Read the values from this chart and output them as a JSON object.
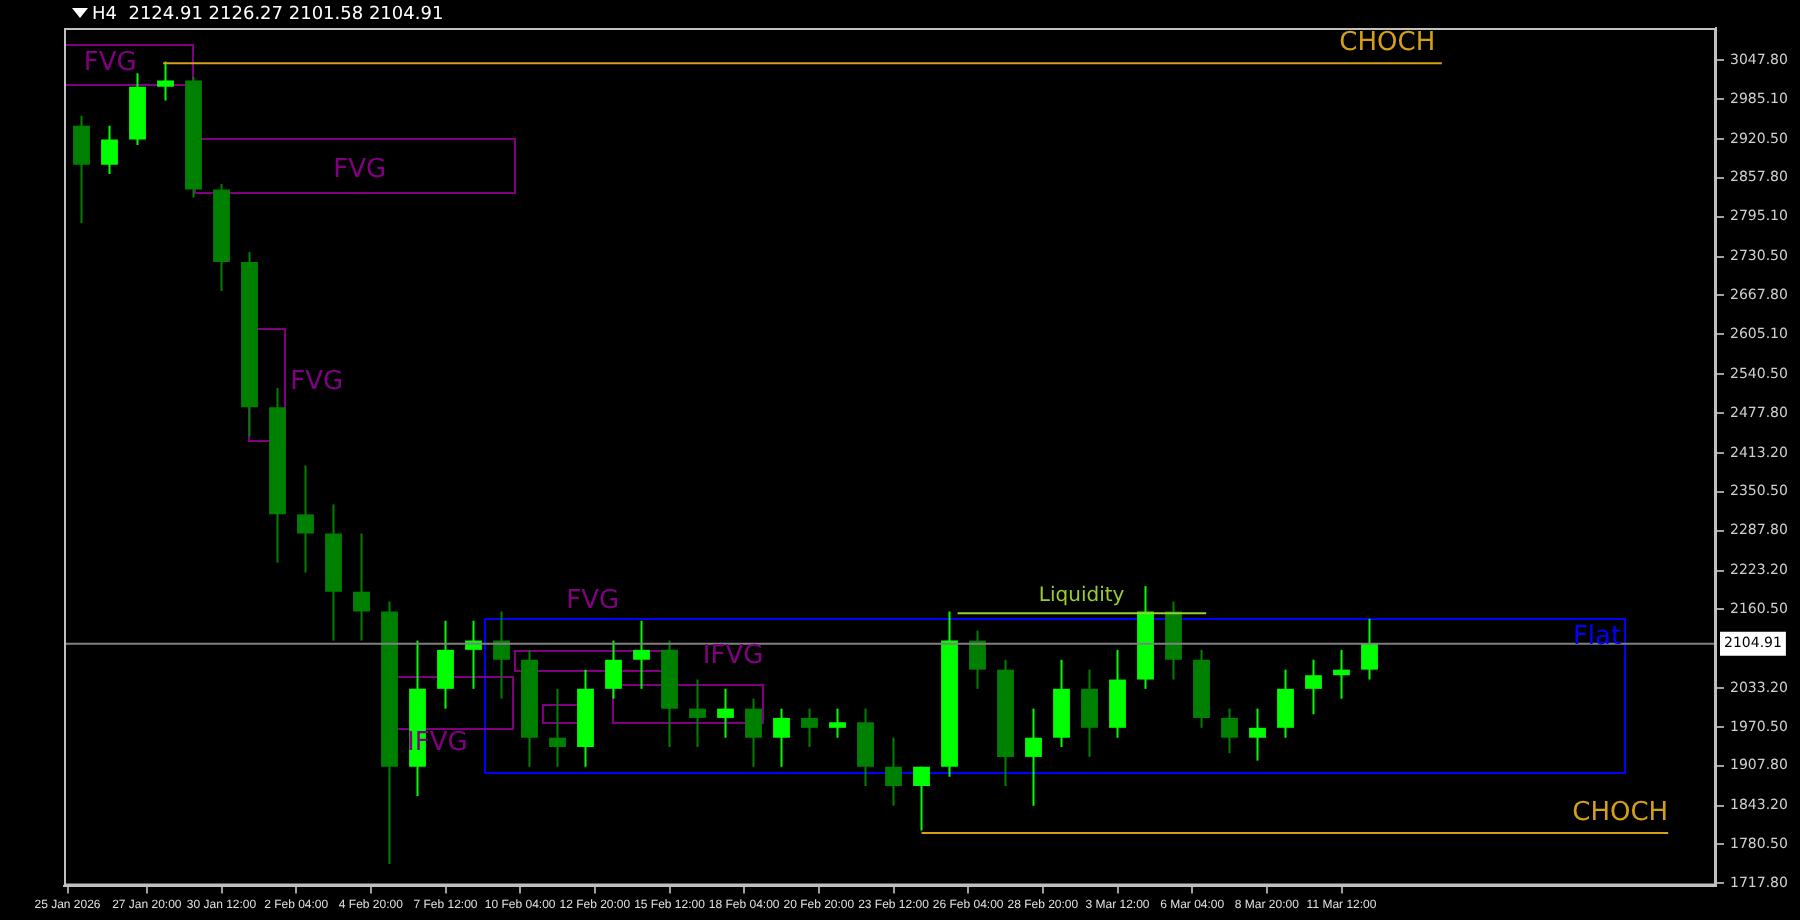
{
  "chart_data": {
    "type": "candlestick",
    "title": "H4  2124.91 2126.27 2101.58 2104.91",
    "xlim": [
      "2026-01-24T21:00",
      "2026-03-24T21:00"
    ],
    "xticks": [
      {
        "value": "2026-01-25",
        "label": "25 Jan 2026"
      },
      {
        "value": "2026-01-27T20:00",
        "label": "27 Jan 20:00"
      },
      {
        "value": "2026-01-30T12:00",
        "label": "30 Jan 12:00"
      },
      {
        "value": "2026-02-02T04:00",
        "label": "2 Feb 04:00"
      },
      {
        "value": "2026-02-04T20:00",
        "label": "4 Feb 20:00"
      },
      {
        "value": "2026-02-07T12:00",
        "label": "7 Feb 12:00"
      },
      {
        "value": "2026-02-10T04:00",
        "label": "10 Feb 04:00"
      },
      {
        "value": "2026-02-12T20:00",
        "label": "12 Feb 20:00"
      },
      {
        "value": "2026-02-15T12:00",
        "label": "15 Feb 12:00"
      },
      {
        "value": "2026-02-18T04:00",
        "label": "18 Feb 04:00"
      },
      {
        "value": "2026-02-20T20:00",
        "label": "20 Feb 20:00"
      },
      {
        "value": "2026-02-23T12:00",
        "label": "23 Feb 12:00"
      },
      {
        "value": "2026-02-26T04:00",
        "label": "26 Feb 04:00"
      },
      {
        "value": "2026-02-28T20:00",
        "label": "28 Feb 20:00"
      },
      {
        "value": "2026-03-03T12:00",
        "label": "3 Mar 12:00"
      },
      {
        "value": "2026-03-06T04:00",
        "label": "6 Mar 04:00"
      },
      {
        "value": "2026-03-08T20:00",
        "label": "8 Mar 20:00"
      },
      {
        "value": "2026-03-11T12:00",
        "label": "11 Mar 12:00"
      }
    ],
    "ylim": [
      1714,
      3100
    ],
    "yticks": [
      {
        "value": 1717.8,
        "label": "1717.80"
      },
      {
        "value": 1780.5,
        "label": "1780.50"
      },
      {
        "value": 1843.2,
        "label": "1843.20"
      },
      {
        "value": 1907.8,
        "label": "1907.80"
      },
      {
        "value": 1970.5,
        "label": "1970.50"
      },
      {
        "value": 2033.2,
        "label": "2033.20"
      },
      {
        "value": 2160.5,
        "label": "2160.50"
      },
      {
        "value": 2223.2,
        "label": "2223.20"
      },
      {
        "value": 2287.8,
        "label": "2287.80"
      },
      {
        "value": 2350.5,
        "label": "2350.50"
      },
      {
        "value": 2413.2,
        "label": "2413.20"
      },
      {
        "value": 2477.8,
        "label": "2477.80"
      },
      {
        "value": 2540.5,
        "label": "2540.50"
      },
      {
        "value": 2605.1,
        "label": "2605.10"
      },
      {
        "value": 2667.8,
        "label": "2667.80"
      },
      {
        "value": 2730.5,
        "label": "2730.50"
      },
      {
        "value": 2795.1,
        "label": "2795.10"
      },
      {
        "value": 2857.8,
        "label": "2857.80"
      },
      {
        "value": 2920.5,
        "label": "2920.50"
      },
      {
        "value": 2985.1,
        "label": "2985.10"
      },
      {
        "value": 3047.8,
        "label": "3047.80"
      }
    ],
    "ref_lines": [
      {
        "axis": "y",
        "value": 2104.91,
        "label": "2104.91",
        "color": "#808080"
      }
    ],
    "series": [
      {
        "color": "#00ff00",
        "colors": [
          "#008000",
          "#00ff00",
          "#00ff00",
          "#00ff00",
          "#008000",
          "#008000",
          "#008000",
          "#008000",
          "#008000",
          "#008000",
          "#008000",
          "#008000",
          "#00ff00",
          "#00ff00",
          "#00ff00",
          "#008000",
          "#008000",
          "#008000",
          "#00ff00",
          "#00ff00",
          "#00ff00",
          "#008000",
          "#008000",
          "#00ff00",
          "#008000",
          "#00ff00",
          "#008000",
          "#00ff00",
          "#008000",
          "#008000",
          "#00ff00",
          "#00ff00",
          "#008000",
          "#008000",
          "#00ff00",
          "#00ff00",
          "#008000",
          "#00ff00",
          "#00ff00",
          "#008000",
          "#008000",
          "#008000",
          "#00ff00",
          "#00ff00",
          "#00ff00",
          "#00ff00",
          "#00ff00"
        ],
        "x": [
          "2026-01-25T12:00",
          "2026-01-26T12:00",
          "2026-01-27T12:00",
          "2026-01-28T12:00",
          "2026-01-29T12:00",
          "2026-01-30T12:00",
          "2026-01-31T12:00",
          "2026-02-01T12:00",
          "2026-02-02T12:00",
          "2026-02-03T12:00",
          "2026-02-04T12:00",
          "2026-02-05T12:00",
          "2026-02-06T12:00",
          "2026-02-07T12:00",
          "2026-02-08T12:00",
          "2026-02-09T12:00",
          "2026-02-10T12:00",
          "2026-02-11T12:00",
          "2026-02-12T12:00",
          "2026-02-13T12:00",
          "2026-02-14T12:00",
          "2026-02-15T12:00",
          "2026-02-16T12:00",
          "2026-02-17T12:00",
          "2026-02-18T12:00",
          "2026-02-19T12:00",
          "2026-02-20T12:00",
          "2026-02-21T12:00",
          "2026-02-22T12:00",
          "2026-02-23T12:00",
          "2026-02-24T12:00",
          "2026-02-25T12:00",
          "2026-02-26T12:00",
          "2026-02-27T12:00",
          "2026-02-28T12:00",
          "2026-03-01T12:00",
          "2026-03-02T12:00",
          "2026-03-03T12:00",
          "2026-03-04T12:00",
          "2026-03-05T12:00",
          "2026-03-06T12:00",
          "2026-03-07T12:00",
          "2026-03-08T12:00",
          "2026-03-09T12:00",
          "2026-03-10T12:00",
          "2026-03-11T12:00",
          "2026-03-12T12:00"
        ],
        "ohlc": [
          [
            2942,
            2958,
            2785,
            2879
          ],
          [
            2879,
            2942,
            2864,
            2920
          ],
          [
            2920,
            3027,
            2911,
            3005
          ],
          [
            3005,
            3046,
            2983,
            3015
          ],
          [
            3015,
            3021,
            2826,
            2839
          ],
          [
            2839,
            2848,
            2675,
            2722
          ],
          [
            2722,
            2738,
            2440,
            2487
          ],
          [
            2487,
            2518,
            2236,
            2314
          ],
          [
            2314,
            2393,
            2220,
            2283
          ],
          [
            2283,
            2330,
            2110,
            2189
          ],
          [
            2189,
            2283,
            2110,
            2157
          ],
          [
            2157,
            2173,
            1749,
            1906
          ],
          [
            1906,
            2110,
            1859,
            2032
          ],
          [
            2032,
            2142,
            2000,
            2095
          ],
          [
            2095,
            2142,
            2032,
            2110
          ],
          [
            2110,
            2157,
            2016,
            2079
          ],
          [
            2079,
            2095,
            1906,
            1953
          ],
          [
            1953,
            2032,
            1906,
            1938
          ],
          [
            1938,
            2063,
            1906,
            2032
          ],
          [
            2032,
            2110,
            2016,
            2079
          ],
          [
            2079,
            2142,
            2032,
            2095
          ],
          [
            2095,
            2110,
            1938,
            2000
          ],
          [
            2000,
            2047,
            1938,
            1985
          ],
          [
            1985,
            2032,
            1953,
            2000
          ],
          [
            2000,
            2016,
            1906,
            1953
          ],
          [
            1953,
            2000,
            1906,
            1985
          ],
          [
            1985,
            2000,
            1938,
            1969
          ],
          [
            1969,
            2000,
            1953,
            1978
          ],
          [
            1978,
            2000,
            1875,
            1906
          ],
          [
            1906,
            1953,
            1843,
            1875
          ],
          [
            1875,
            1906,
            1803,
            1906
          ],
          [
            1906,
            2157,
            1890,
            2110
          ],
          [
            2110,
            2126,
            2032,
            2063
          ],
          [
            2063,
            2079,
            1875,
            1922
          ],
          [
            1922,
            2000,
            1843,
            1953
          ],
          [
            1953,
            2079,
            1938,
            2032
          ],
          [
            2032,
            2063,
            1922,
            1969
          ],
          [
            1969,
            2095,
            1953,
            2047
          ],
          [
            2047,
            2198,
            2032,
            2157
          ],
          [
            2157,
            2173,
            2047,
            2079
          ],
          [
            2079,
            2095,
            1969,
            1985
          ],
          [
            1985,
            2000,
            1928,
            1953
          ],
          [
            1953,
            2000,
            1916,
            1969
          ],
          [
            1969,
            2063,
            1953,
            2032
          ],
          [
            2032,
            2079,
            1991,
            2054
          ],
          [
            2054,
            2095,
            2016,
            2063
          ],
          [
            2063,
            2145,
            2047,
            2104.91
          ]
        ]
      },
      {
        "type": "line",
        "color": "#d4a017",
        "x": [
          "2026-01-28T10:00",
          "2026-03-15T02:00"
        ],
        "values": [
          3043,
          3043
        ]
      },
      {
        "type": "line",
        "color": "#9acd32",
        "x": [
          "2026-02-25T19:00",
          "2026-03-06T16:00"
        ],
        "values": [
          2154,
          2154
        ]
      },
      {
        "type": "line",
        "color": "#d4a017",
        "x": [
          "2026-02-24T12:00",
          "2026-03-23T04:00"
        ],
        "values": [
          1799,
          1799
        ]
      }
    ],
    "annotations": [
      "FVG",
      "FVG",
      "FVG",
      "CHOCH",
      "IFVG",
      "Flat",
      "FVG",
      "IFVG",
      "Liquidity",
      "CHOCH"
    ]
  }
}
